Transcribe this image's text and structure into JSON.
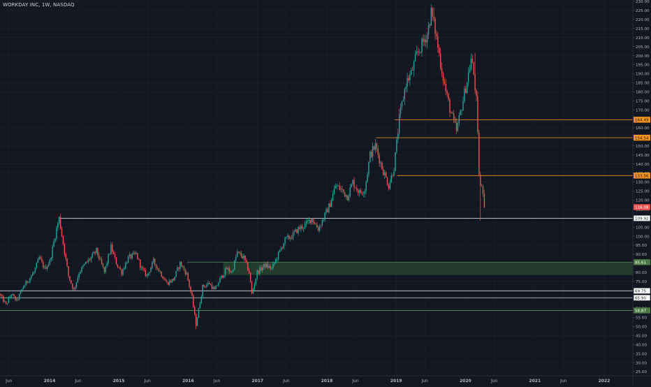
{
  "header": {
    "title": "WORKDAY INC, 1W, NASDAQ"
  },
  "colors": {
    "background": "#131722",
    "grid": "#1e222d",
    "up": "#26a69a",
    "down": "#ef5350",
    "axis_text": "#b2b5be",
    "orange_level": "#f7931a",
    "white_level": "#d1d4dc",
    "green_level": "#6a9955",
    "zone_fill": "#2f5a34"
  },
  "chart_data": {
    "type": "candlestick",
    "title": "WORKDAY INC, 1W, NASDAQ",
    "ylim": [
      25,
      230
    ],
    "xlim": [
      "2013-04-15",
      "2022-06-01"
    ],
    "y_ticks": [
      "25.00",
      "30.00",
      "35.00",
      "40.00",
      "45.00",
      "50.00",
      "55.00",
      "60.00",
      "65.00",
      "70.00",
      "75.00",
      "80.00",
      "85.00",
      "90.00",
      "95.00",
      "100.00",
      "105.00",
      "110.00",
      "115.00",
      "120.00",
      "125.00",
      "130.00",
      "135.00",
      "140.00",
      "145.00",
      "150.00",
      "155.00",
      "160.00",
      "165.00",
      "170.00",
      "175.00",
      "180.00",
      "185.00",
      "190.00",
      "195.00",
      "200.00",
      "205.00",
      "210.00",
      "215.00",
      "220.00",
      "225.00",
      "230.00"
    ],
    "x_ticks": [
      {
        "label": "Jun",
        "date": "2013-06-01"
      },
      {
        "label": "2014",
        "date": "2014-01-01"
      },
      {
        "label": "Jun",
        "date": "2014-06-01"
      },
      {
        "label": "2015",
        "date": "2015-01-01"
      },
      {
        "label": "Jun",
        "date": "2015-06-01"
      },
      {
        "label": "2016",
        "date": "2016-01-01"
      },
      {
        "label": "Jun",
        "date": "2016-06-01"
      },
      {
        "label": "2017",
        "date": "2017-01-01"
      },
      {
        "label": "Jun",
        "date": "2017-06-01"
      },
      {
        "label": "2018",
        "date": "2018-01-01"
      },
      {
        "label": "Jun",
        "date": "2018-06-01"
      },
      {
        "label": "2019",
        "date": "2019-01-01"
      },
      {
        "label": "Jun",
        "date": "2019-06-01"
      },
      {
        "label": "2020",
        "date": "2020-01-01"
      },
      {
        "label": "Jun",
        "date": "2020-06-01"
      },
      {
        "label": "2021",
        "date": "2021-01-01"
      },
      {
        "label": "Jun",
        "date": "2021-06-01"
      },
      {
        "label": "2022",
        "date": "2022-01-01"
      }
    ],
    "anchors": [
      [
        "2013-04-15",
        68
      ],
      [
        "2013-05-20",
        62
      ],
      [
        "2013-06-17",
        68
      ],
      [
        "2013-07-15",
        64
      ],
      [
        "2013-08-19",
        72
      ],
      [
        "2013-10-14",
        80
      ],
      [
        "2013-11-11",
        88
      ],
      [
        "2013-12-09",
        82
      ],
      [
        "2014-01-06",
        86
      ],
      [
        "2014-02-10",
        104
      ],
      [
        "2014-02-24",
        110
      ],
      [
        "2014-03-17",
        96
      ],
      [
        "2014-04-14",
        78
      ],
      [
        "2014-05-12",
        70
      ],
      [
        "2014-06-09",
        80
      ],
      [
        "2014-07-14",
        85
      ],
      [
        "2014-08-11",
        88
      ],
      [
        "2014-09-08",
        92
      ],
      [
        "2014-10-20",
        80
      ],
      [
        "2014-11-24",
        94
      ],
      [
        "2014-12-22",
        85
      ],
      [
        "2015-01-19",
        80
      ],
      [
        "2015-02-23",
        88
      ],
      [
        "2015-04-06",
        90
      ],
      [
        "2015-05-04",
        82
      ],
      [
        "2015-06-01",
        78
      ],
      [
        "2015-07-06",
        86
      ],
      [
        "2015-08-10",
        80
      ],
      [
        "2015-09-14",
        74
      ],
      [
        "2015-10-19",
        76
      ],
      [
        "2015-11-23",
        85
      ],
      [
        "2015-12-28",
        79
      ],
      [
        "2016-01-25",
        66
      ],
      [
        "2016-02-15",
        51
      ],
      [
        "2016-03-21",
        72
      ],
      [
        "2016-04-25",
        74
      ],
      [
        "2016-05-23",
        70
      ],
      [
        "2016-06-20",
        76
      ],
      [
        "2016-07-25",
        82
      ],
      [
        "2016-08-22",
        80
      ],
      [
        "2016-09-19",
        91
      ],
      [
        "2016-10-24",
        88
      ],
      [
        "2016-11-21",
        80
      ],
      [
        "2016-12-05",
        68
      ],
      [
        "2017-01-02",
        80
      ],
      [
        "2017-02-13",
        84
      ],
      [
        "2017-03-20",
        82
      ],
      [
        "2017-04-24",
        90
      ],
      [
        "2017-05-29",
        98
      ],
      [
        "2017-07-03",
        100
      ],
      [
        "2017-08-07",
        104
      ],
      [
        "2017-09-11",
        106
      ],
      [
        "2017-10-16",
        110
      ],
      [
        "2017-11-20",
        104
      ],
      [
        "2017-12-18",
        110
      ],
      [
        "2018-01-22",
        118
      ],
      [
        "2018-02-19",
        128
      ],
      [
        "2018-03-19",
        126
      ],
      [
        "2018-04-23",
        122
      ],
      [
        "2018-05-21",
        130
      ],
      [
        "2018-06-25",
        124
      ],
      [
        "2018-07-23",
        126
      ],
      [
        "2018-08-20",
        145
      ],
      [
        "2018-09-17",
        150
      ],
      [
        "2018-10-22",
        138
      ],
      [
        "2018-11-26",
        128
      ],
      [
        "2018-12-24",
        138
      ],
      [
        "2019-01-21",
        165
      ],
      [
        "2019-02-25",
        185
      ],
      [
        "2019-03-25",
        190
      ],
      [
        "2019-04-22",
        200
      ],
      [
        "2019-05-20",
        206
      ],
      [
        "2019-06-17",
        212
      ],
      [
        "2019-07-08",
        224
      ],
      [
        "2019-07-29",
        214
      ],
      [
        "2019-08-26",
        196
      ],
      [
        "2019-09-23",
        180
      ],
      [
        "2019-10-21",
        168
      ],
      [
        "2019-11-18",
        158
      ],
      [
        "2019-12-16",
        172
      ],
      [
        "2020-01-13",
        186
      ],
      [
        "2020-02-03",
        198
      ],
      [
        "2020-02-17",
        190
      ],
      [
        "2020-03-02",
        175
      ],
      [
        "2020-03-16",
        135
      ],
      [
        "2020-03-23",
        128
      ],
      [
        "2020-04-06",
        125
      ]
    ],
    "last_price": "116.08",
    "levels": [
      {
        "value": 164.49,
        "label": "164.49",
        "style": "orange",
        "start": "2018-12-24"
      },
      {
        "value": 154.54,
        "label": "154.54",
        "style": "orange",
        "start": "2018-09-17"
      },
      {
        "value": 133.56,
        "label": "133.56",
        "style": "orange",
        "start": "2019-01-07"
      },
      {
        "value": 109.92,
        "label": "109.92",
        "style": "white",
        "start": "2014-02-24"
      },
      {
        "value": 69.75,
        "label": "69.75",
        "style": "white",
        "start": "2013-04-15"
      },
      {
        "value": 65.9,
        "label": "65.90",
        "style": "white",
        "start": "2013-04-15"
      },
      {
        "value": 58.87,
        "label": "58.87",
        "style": "green",
        "start": "2013-04-15"
      }
    ],
    "zones": [
      {
        "top": 85.61,
        "bottom": 78.5,
        "label": "85.61",
        "start": "2016-07-04",
        "outline_start": "2015-12-28"
      }
    ]
  }
}
